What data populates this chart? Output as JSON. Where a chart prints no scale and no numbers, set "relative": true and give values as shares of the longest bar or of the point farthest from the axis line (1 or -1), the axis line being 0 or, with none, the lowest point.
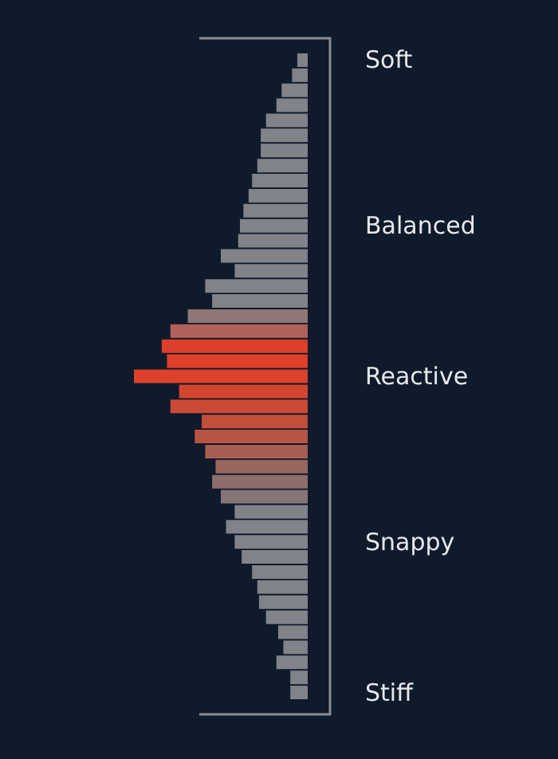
{
  "chart_data": {
    "type": "bar",
    "orientation": "horizontal",
    "relative": true,
    "categories": [
      "Soft",
      null,
      null,
      null,
      null,
      null,
      null,
      null,
      null,
      null,
      null,
      "Balanced",
      null,
      null,
      null,
      null,
      null,
      null,
      null,
      null,
      null,
      "Reactive",
      null,
      null,
      null,
      null,
      null,
      null,
      null,
      null,
      null,
      null,
      "Snappy",
      null,
      null,
      null,
      null,
      null,
      null,
      null,
      null,
      null,
      "Stiff"
    ],
    "values": [
      0.06,
      0.09,
      0.15,
      0.18,
      0.24,
      0.27,
      0.27,
      0.29,
      0.32,
      0.34,
      0.37,
      0.39,
      0.4,
      0.5,
      0.42,
      0.59,
      0.55,
      0.69,
      0.79,
      0.84,
      0.81,
      1,
      0.74,
      0.79,
      0.61,
      0.65,
      0.59,
      0.53,
      0.55,
      0.5,
      0.42,
      0.47,
      0.42,
      0.38,
      0.32,
      0.29,
      0.28,
      0.24,
      0.17,
      0.14,
      0.18,
      0.1,
      0.1
    ],
    "colors": [
      "#808389",
      "#808389",
      "#808389",
      "#808389",
      "#808389",
      "#808389",
      "#808389",
      "#808389",
      "#808389",
      "#808389",
      "#808389",
      "#808389",
      "#808389",
      "#808389",
      "#808389",
      "#808389",
      "#808389",
      "#8e7775",
      "#b0625a",
      "#dc3f2a",
      "#e0402a",
      "#dd412c",
      "#d4452f",
      "#cc4a35",
      "#c24f3c",
      "#b85443",
      "#a85d53",
      "#996660",
      "#8e6d6a",
      "#867576",
      "#808389",
      "#808389",
      "#808389",
      "#808389",
      "#808389",
      "#808389",
      "#808389",
      "#808389",
      "#808389",
      "#808389",
      "#808389",
      "#808389",
      "#808389"
    ]
  }
}
